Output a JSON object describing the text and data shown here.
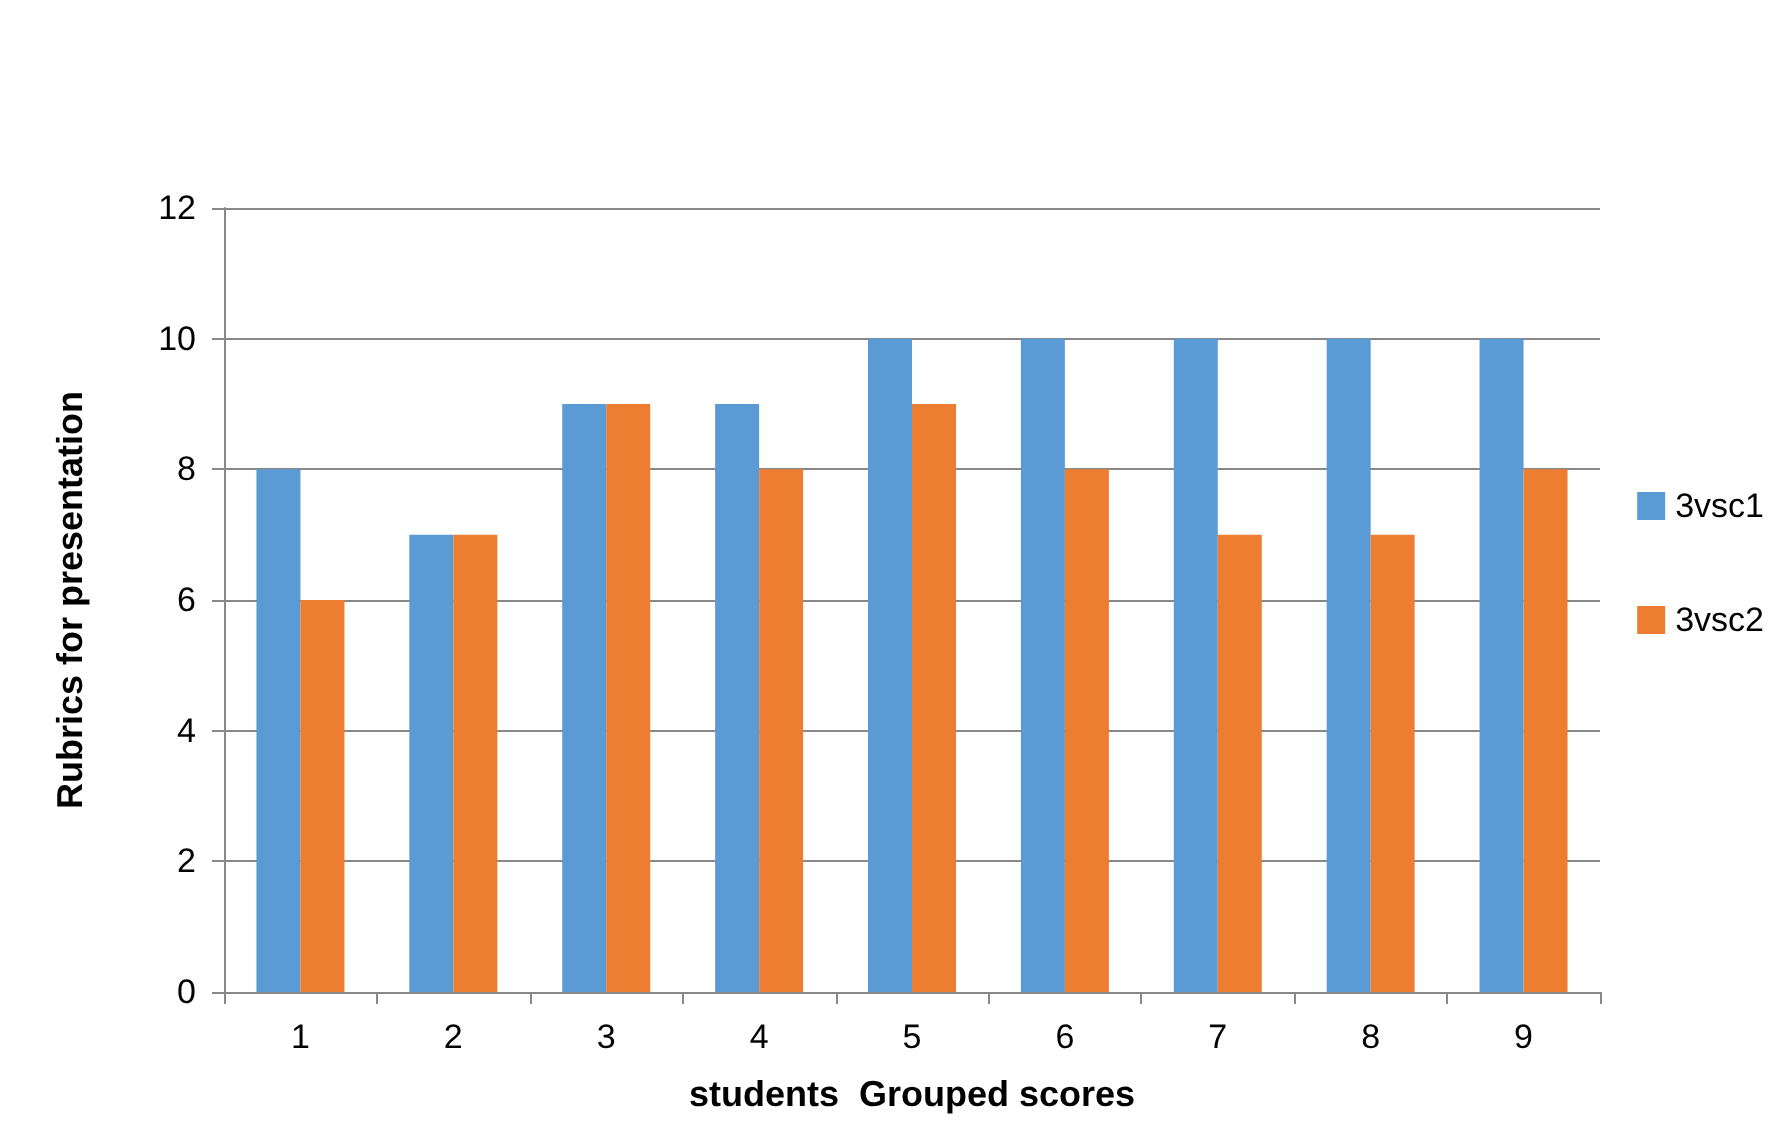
{
  "chart_data": {
    "type": "bar",
    "xlabel": "students  Grouped scores",
    "ylabel": "Rubrics for presentation",
    "categories": [
      "1",
      "2",
      "3",
      "4",
      "5",
      "6",
      "7",
      "8",
      "9"
    ],
    "series": [
      {
        "name": "3vsc1",
        "color": "#5b9bd5",
        "values": [
          8,
          7,
          9,
          9,
          10,
          10,
          10,
          10,
          10
        ]
      },
      {
        "name": "3vsc2",
        "color": "#ed7d31",
        "values": [
          6,
          7,
          9,
          8,
          9,
          8,
          7,
          7,
          8
        ]
      }
    ],
    "ylim": [
      0,
      12
    ],
    "yticks": [
      0,
      2,
      4,
      6,
      8,
      10,
      12
    ],
    "grid": "y",
    "legend": "right"
  }
}
